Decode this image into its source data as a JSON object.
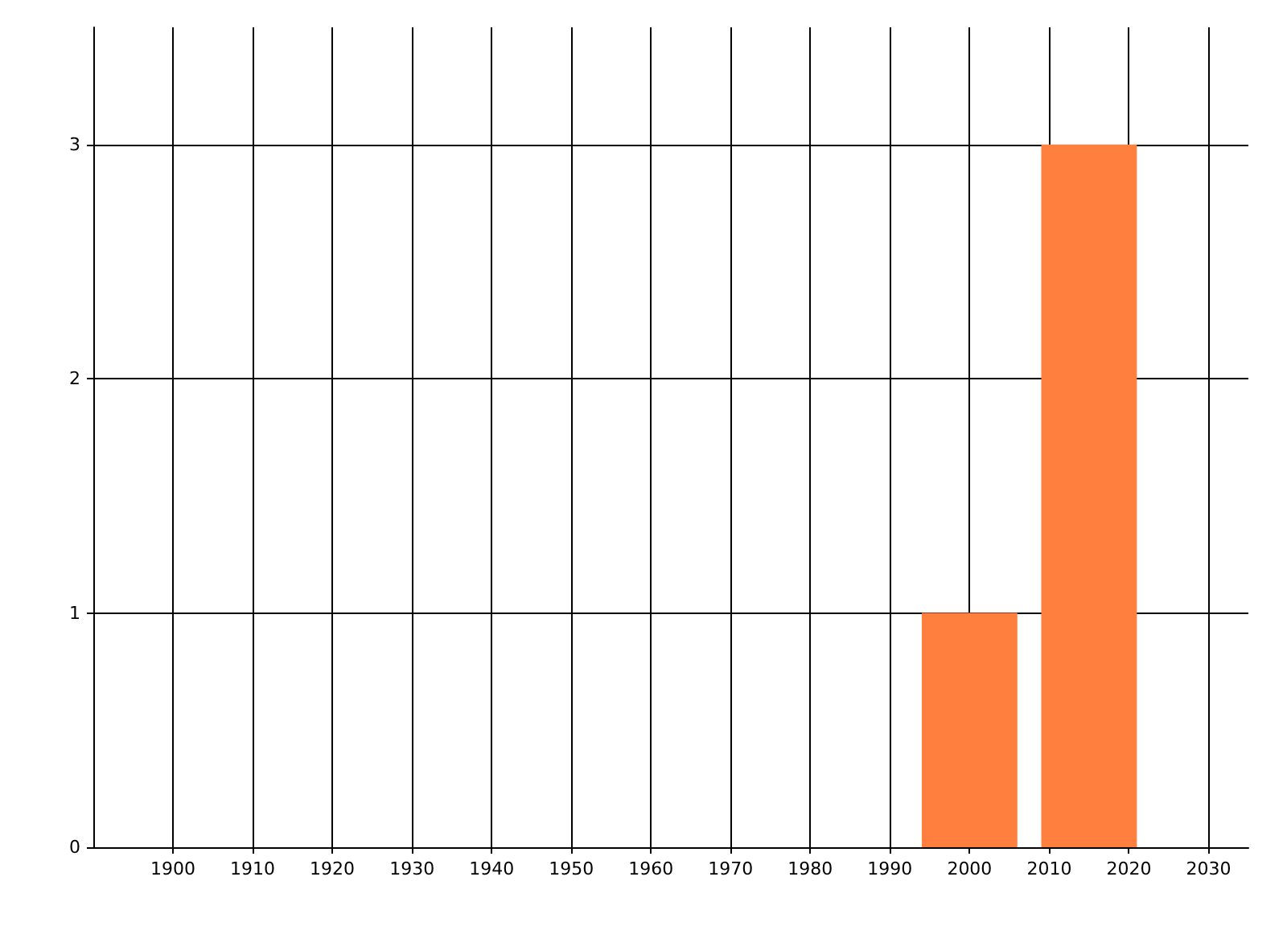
{
  "chart_data": {
    "type": "bar",
    "x": [
      2000,
      2015
    ],
    "values": [
      1,
      3
    ],
    "color": "#ff7f3f",
    "xlim": [
      1890,
      2035
    ],
    "xticks": [
      1900,
      1910,
      1920,
      1930,
      1940,
      1950,
      1960,
      1970,
      1980,
      1990,
      2000,
      2010,
      2020,
      2030
    ],
    "ylim": [
      0,
      3.5
    ],
    "yticks": [
      0,
      1,
      2,
      3
    ],
    "grid": true
  }
}
